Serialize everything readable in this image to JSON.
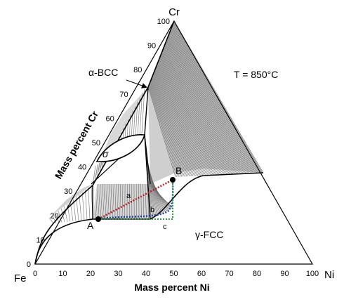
{
  "corners": {
    "top": "Cr",
    "left": "Fe",
    "right": "Ni"
  },
  "axis_titles": {
    "left": "Mass percent Cr",
    "bottom": "Mass percent Ni"
  },
  "ticks": {
    "bottom": [
      "0",
      "10",
      "20",
      "30",
      "40",
      "50",
      "60",
      "70",
      "80",
      "90",
      "100"
    ],
    "left": [
      "0",
      "10",
      "20",
      "30",
      "40",
      "50",
      "60",
      "70",
      "80",
      "90",
      "100"
    ]
  },
  "temperature_label": "T = 850°C",
  "phase_labels": {
    "bcc": "α-BCC",
    "sigma": "σ",
    "fcc": "γ-FCC"
  },
  "points": {
    "A": "A",
    "B": "B"
  },
  "path_labels": {
    "a": "a",
    "b": "b",
    "c": "c"
  },
  "colors": {
    "a": "#b22222",
    "b": "#1f3f8f",
    "c": "#2e9b4a",
    "tie": "#707070",
    "region": "#d4d4d4"
  }
}
